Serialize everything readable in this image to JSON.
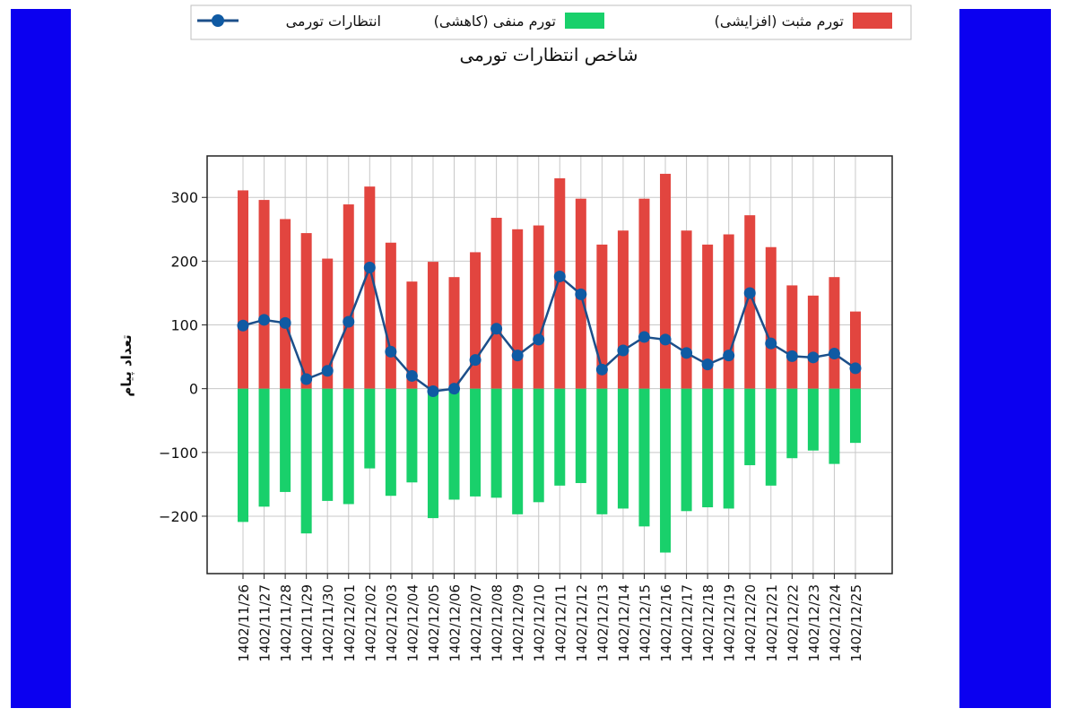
{
  "colors": {
    "frame": "#0b00f0",
    "positive": "#e2453f",
    "negative": "#19d06b",
    "line": "#1c4f8a",
    "marker": "#0f5aa3",
    "grid": "#c8c8c8"
  },
  "chart_data": {
    "type": "bar",
    "title": "شاخص انتظارات تورمی",
    "xlabel": "",
    "ylabel": "تعداد پیام",
    "ylim": [
      -290,
      365
    ],
    "yticks": [
      -200,
      -100,
      0,
      100,
      200,
      300
    ],
    "ytick_labels": [
      "−200",
      "−100",
      "0",
      "100",
      "200",
      "300"
    ],
    "grid": true,
    "legend_position": "top",
    "categories": [
      "1402/11/26",
      "1402/11/27",
      "1402/11/28",
      "1402/11/29",
      "1402/11/30",
      "1402/12/01",
      "1402/12/02",
      "1402/12/03",
      "1402/12/04",
      "1402/12/05",
      "1402/12/06",
      "1402/12/07",
      "1402/12/08",
      "1402/12/09",
      "1402/12/10",
      "1402/12/11",
      "1402/12/12",
      "1402/12/13",
      "1402/12/14",
      "1402/12/15",
      "1402/12/16",
      "1402/12/17",
      "1402/12/18",
      "1402/12/19",
      "1402/12/20",
      "1402/12/21",
      "1402/12/22",
      "1402/12/23",
      "1402/12/24",
      "1402/12/25"
    ],
    "series": [
      {
        "name": "تورم مثبت (افزایشی)",
        "kind": "bar",
        "values": [
          311,
          296,
          266,
          244,
          204,
          289,
          317,
          229,
          168,
          199,
          175,
          214,
          268,
          250,
          256,
          330,
          298,
          226,
          248,
          298,
          337,
          248,
          226,
          242,
          272,
          222,
          162,
          146,
          175,
          121
        ]
      },
      {
        "name": "تورم منفی (کاهشی)",
        "kind": "bar",
        "values": [
          -209,
          -185,
          -162,
          -227,
          -176,
          -181,
          -125,
          -168,
          -147,
          -203,
          -174,
          -169,
          -171,
          -197,
          -178,
          -152,
          -148,
          -197,
          -188,
          -216,
          -257,
          -192,
          -186,
          -188,
          -120,
          -152,
          -109,
          -97,
          -118,
          -85
        ]
      },
      {
        "name": "انتظارات تورمی",
        "kind": "line",
        "values": [
          99,
          108,
          103,
          15,
          28,
          105,
          190,
          58,
          20,
          -4,
          0,
          45,
          94,
          52,
          77,
          176,
          148,
          30,
          60,
          81,
          77,
          56,
          38,
          52,
          150,
          71,
          51,
          49,
          55,
          32
        ]
      }
    ]
  }
}
